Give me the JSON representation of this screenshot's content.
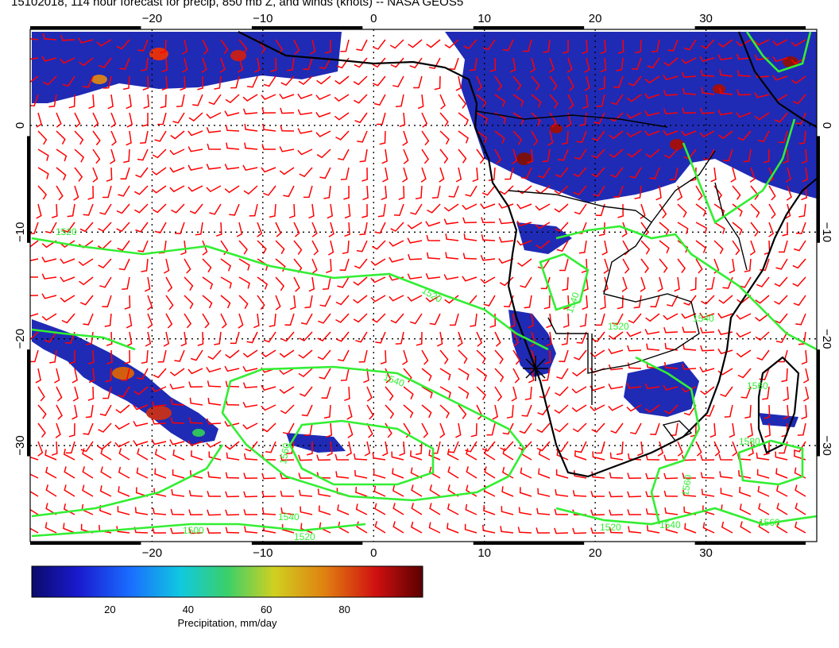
{
  "title": "15102018, 114 hour forecast for precip, 850 mb Z, and winds (knots) -- NASA GEOS5",
  "axes": {
    "x_ticks": [
      "−20",
      "−10",
      "0",
      "10",
      "20",
      "30"
    ],
    "x_values": [
      -20,
      -10,
      0,
      10,
      20,
      30
    ],
    "y_ticks": [
      "0",
      "−10",
      "−20",
      "−30"
    ],
    "y_values": [
      0,
      -10,
      -20,
      -30
    ],
    "lon_range": [
      -31,
      40
    ],
    "lat_range": [
      9,
      -39
    ]
  },
  "colorbar": {
    "label": "Precipitation, mm/day",
    "ticks": [
      "20",
      "40",
      "60",
      "80"
    ],
    "tick_values": [
      20,
      40,
      60,
      80
    ],
    "range": [
      0,
      100
    ]
  },
  "contours": {
    "color": "#33ee33",
    "labels": [
      "1520",
      "1520",
      "1540",
      "1560",
      "1580",
      "1560",
      "1540",
      "1520",
      "1500",
      "1520",
      "1560",
      "1540",
      "1560",
      "1540",
      "1520",
      "1540"
    ]
  },
  "colors": {
    "wind_barbs": "#ff0000",
    "contours": "#33ee33",
    "coastline": "#000000",
    "precip_low": "#1a1aa8",
    "precip_high": "#6b0000"
  },
  "grid": true
}
